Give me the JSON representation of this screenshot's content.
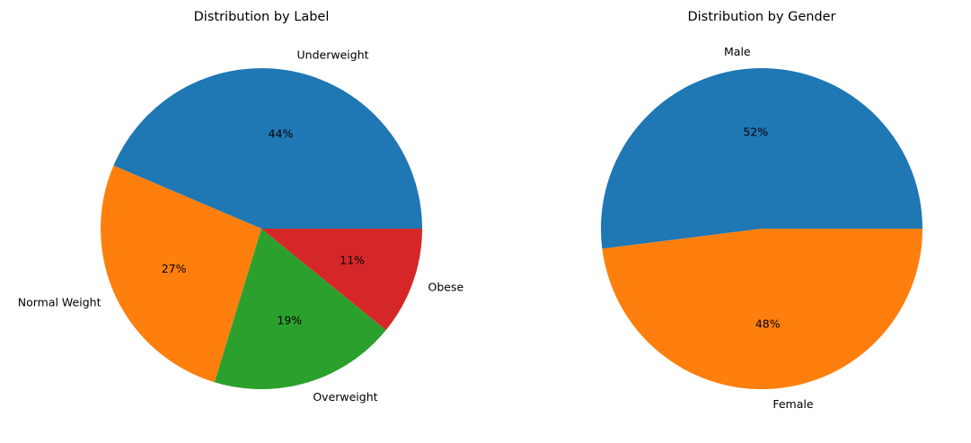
{
  "chart_data": [
    {
      "type": "pie",
      "title": "Distribution by Label",
      "labels": [
        "Underweight",
        "Normal Weight",
        "Overweight",
        "Obese"
      ],
      "values": [
        44,
        27,
        19,
        11
      ],
      "percent_labels": [
        "44%",
        "27%",
        "19%",
        "11%"
      ],
      "colors": [
        "#1f77b4",
        "#ff7f0e",
        "#2ca02c",
        "#d62728"
      ],
      "start_angle_deg": 0,
      "direction": "counterclockwise"
    },
    {
      "type": "pie",
      "title": "Distribution by Gender",
      "labels": [
        "Male",
        "Female"
      ],
      "values": [
        52,
        48
      ],
      "percent_labels": [
        "52%",
        "48%"
      ],
      "colors": [
        "#1f77b4",
        "#ff7f0e"
      ],
      "start_angle_deg": 0,
      "direction": "counterclockwise"
    }
  ]
}
